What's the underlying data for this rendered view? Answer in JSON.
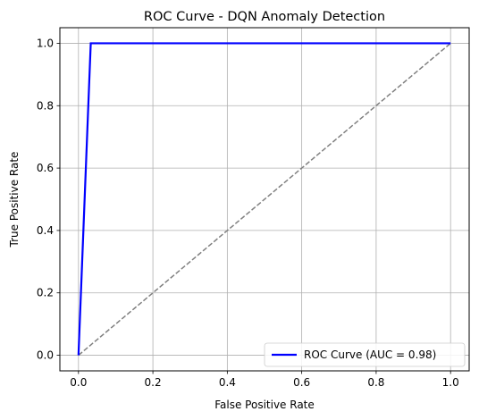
{
  "chart_data": {
    "type": "line",
    "title": "ROC Curve - DQN Anomaly Detection",
    "xlabel": "False Positive Rate",
    "ylabel": "True Positive Rate",
    "xlim": [
      -0.05,
      1.05
    ],
    "ylim": [
      -0.05,
      1.05
    ],
    "xticks": [
      0.0,
      0.2,
      0.4,
      0.6,
      0.8,
      1.0
    ],
    "xtick_labels": [
      "0.0",
      "0.2",
      "0.4",
      "0.6",
      "0.8",
      "1.0"
    ],
    "yticks": [
      0.0,
      0.2,
      0.4,
      0.6,
      0.8,
      1.0
    ],
    "ytick_labels": [
      "0.0",
      "0.2",
      "0.4",
      "0.6",
      "0.8",
      "1.0"
    ],
    "grid": true,
    "legend_position": "lower-right",
    "series": [
      {
        "name": "ROC Curve (AUC = 0.98)",
        "color": "#0000ff",
        "style": "solid",
        "x": [
          0.0,
          0.033,
          1.0
        ],
        "y": [
          0.0,
          1.0,
          1.0
        ]
      },
      {
        "color": "#808080",
        "style": "dashed",
        "x": [
          0.0,
          1.0
        ],
        "y": [
          0.0,
          1.0
        ]
      }
    ]
  }
}
